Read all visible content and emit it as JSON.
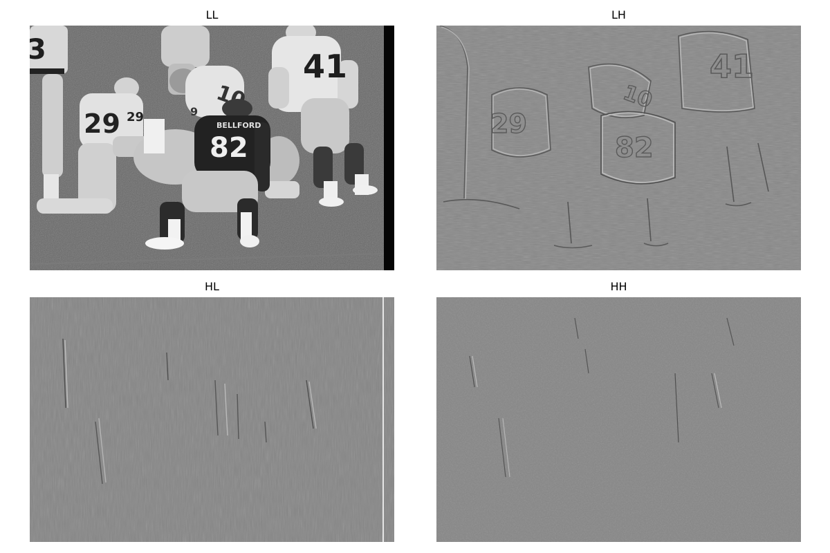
{
  "panels": {
    "ll": {
      "title": "LL"
    },
    "lh": {
      "title": "LH"
    },
    "hl": {
      "title": "HL"
    },
    "hh": {
      "title": "HH"
    }
  },
  "photo": {
    "jerseys": {
      "left_partial": "3",
      "kneeling": "29",
      "kneeling_sleeve": "29",
      "center": "10",
      "dark": "82",
      "right": "41",
      "shoulder": "9"
    },
    "nameplate": "BELLFORD"
  },
  "colors": {
    "background": "#ffffff",
    "field_ll": "#6b6b6b",
    "field_detail": "#8a8a8a"
  }
}
